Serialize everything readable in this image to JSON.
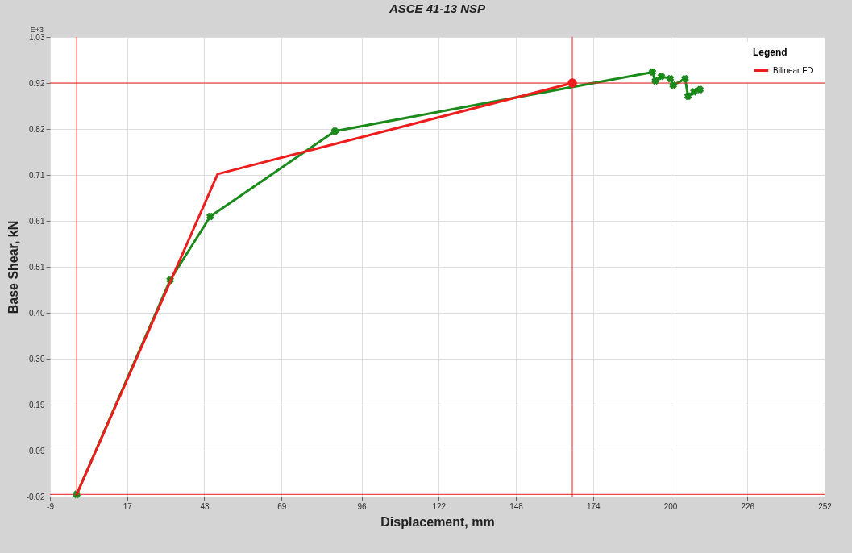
{
  "chart_data": {
    "type": "line",
    "title": "ASCE 41-13 NSP",
    "xlabel": "Displacement, mm",
    "ylabel": "Base Shear, kN",
    "legend_title": "Legend",
    "annotations": [
      "E+3"
    ],
    "xlim": [
      -9,
      252
    ],
    "xticks": [
      -9,
      17,
      43,
      69,
      96,
      122,
      148,
      174,
      200,
      226,
      252
    ],
    "ylim": [
      -0.02,
      1.03
    ],
    "yticks": [
      -0.02,
      {
        "value": 0.085,
        "label": "0.09"
      },
      0.19,
      {
        "value": 0.295,
        "label": "0.30"
      },
      {
        "value": 0.4,
        "label": "0.40"
      },
      {
        "value": 0.505,
        "label": "0.51"
      },
      0.61,
      {
        "value": 0.715,
        "label": "0.71"
      },
      0.82,
      {
        "value": 0.925,
        "label": "0.92"
      },
      1.03
    ],
    "grid": true,
    "legend": "top right",
    "series": [
      {
        "color": "#1a8a1a",
        "marker": "cross",
        "x": [
          0,
          31.5,
          45,
          87,
          194,
          195,
          197,
          200,
          201,
          205,
          206,
          208,
          210
        ],
        "values": [
          -0.015,
          0.475,
          0.62,
          0.815,
          0.95,
          0.93,
          0.94,
          0.935,
          0.92,
          0.935,
          0.895,
          0.905,
          0.91
        ]
      },
      {
        "name": "Bilinear FD",
        "color": "#ee1c1c",
        "marker": "none",
        "x": [
          0,
          47.5,
          167
        ],
        "values": [
          -0.015,
          0.717,
          0.925
        ]
      },
      {
        "type": "scatter",
        "color": "#ee1c1c",
        "marker": "circle",
        "x": [
          167
        ],
        "values": [
          0.925
        ]
      }
    ],
    "ref_lines": [
      {
        "axis": "x",
        "value": 0,
        "color": "#ee1c1c"
      },
      {
        "axis": "x",
        "value": 167,
        "color": "#ee1c1c"
      },
      {
        "axis": "y",
        "value": 0.925,
        "color": "#ee1c1c"
      },
      {
        "axis": "y",
        "value": -0.015,
        "color": "#ee1c1c"
      }
    ]
  }
}
